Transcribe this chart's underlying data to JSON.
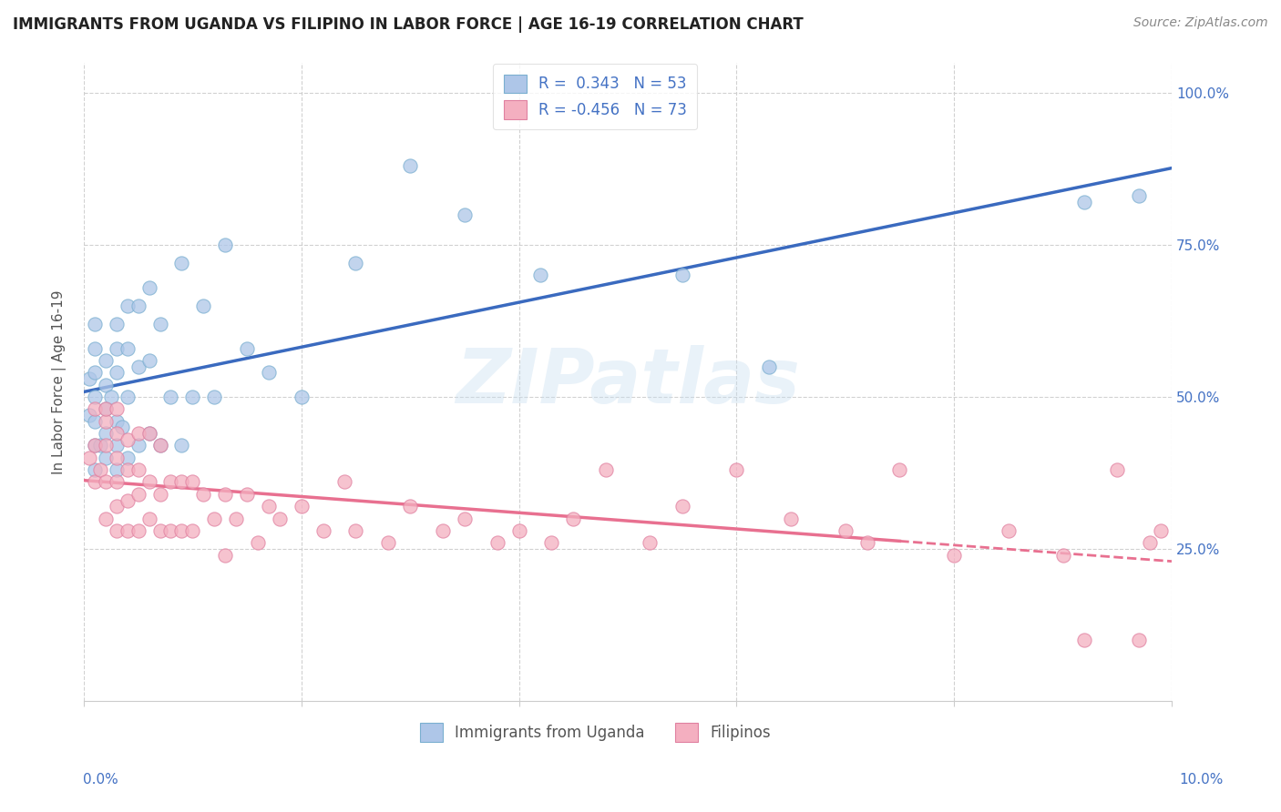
{
  "title": "IMMIGRANTS FROM UGANDA VS FILIPINO IN LABOR FORCE | AGE 16-19 CORRELATION CHART",
  "source": "Source: ZipAtlas.com",
  "ylabel": "In Labor Force | Age 16-19",
  "yticks": [
    "25.0%",
    "50.0%",
    "75.0%",
    "100.0%"
  ],
  "ytick_positions": [
    0.25,
    0.5,
    0.75,
    1.0
  ],
  "xlim": [
    0.0,
    0.1
  ],
  "ylim": [
    0.0,
    1.05
  ],
  "legend_r1": "R =  0.343",
  "legend_n1": "N = 53",
  "legend_r2": "R = -0.456",
  "legend_n2": "N = 73",
  "watermark": "ZIPatlas",
  "uganda_color": "#aec6e8",
  "filipino_color": "#f4afc0",
  "uganda_edge": "#7aafd0",
  "filipino_edge": "#e080a0",
  "line_blue": "#3a6abf",
  "line_pink": "#e87090",
  "uganda_points_x": [
    0.0005,
    0.0005,
    0.001,
    0.001,
    0.001,
    0.001,
    0.001,
    0.001,
    0.001,
    0.0015,
    0.002,
    0.002,
    0.002,
    0.002,
    0.002,
    0.0025,
    0.003,
    0.003,
    0.003,
    0.003,
    0.003,
    0.003,
    0.0035,
    0.004,
    0.004,
    0.004,
    0.004,
    0.005,
    0.005,
    0.005,
    0.006,
    0.006,
    0.006,
    0.007,
    0.007,
    0.008,
    0.009,
    0.009,
    0.01,
    0.011,
    0.012,
    0.013,
    0.015,
    0.017,
    0.02,
    0.025,
    0.03,
    0.035,
    0.042,
    0.055,
    0.063,
    0.092,
    0.097
  ],
  "uganda_points_y": [
    0.47,
    0.53,
    0.38,
    0.42,
    0.46,
    0.5,
    0.54,
    0.58,
    0.62,
    0.42,
    0.4,
    0.44,
    0.48,
    0.52,
    0.56,
    0.5,
    0.38,
    0.42,
    0.46,
    0.54,
    0.58,
    0.62,
    0.45,
    0.4,
    0.5,
    0.58,
    0.65,
    0.42,
    0.55,
    0.65,
    0.44,
    0.56,
    0.68,
    0.42,
    0.62,
    0.5,
    0.42,
    0.72,
    0.5,
    0.65,
    0.5,
    0.75,
    0.58,
    0.54,
    0.5,
    0.72,
    0.88,
    0.8,
    0.7,
    0.7,
    0.55,
    0.82,
    0.83
  ],
  "filipino_points_x": [
    0.0005,
    0.001,
    0.001,
    0.001,
    0.0015,
    0.002,
    0.002,
    0.002,
    0.002,
    0.002,
    0.003,
    0.003,
    0.003,
    0.003,
    0.003,
    0.003,
    0.004,
    0.004,
    0.004,
    0.004,
    0.005,
    0.005,
    0.005,
    0.005,
    0.006,
    0.006,
    0.006,
    0.007,
    0.007,
    0.007,
    0.008,
    0.008,
    0.009,
    0.009,
    0.01,
    0.01,
    0.011,
    0.012,
    0.013,
    0.013,
    0.014,
    0.015,
    0.016,
    0.017,
    0.018,
    0.02,
    0.022,
    0.024,
    0.025,
    0.028,
    0.03,
    0.033,
    0.035,
    0.038,
    0.04,
    0.043,
    0.045,
    0.048,
    0.052,
    0.055,
    0.06,
    0.065,
    0.07,
    0.072,
    0.075,
    0.08,
    0.085,
    0.09,
    0.092,
    0.095,
    0.097,
    0.098,
    0.099
  ],
  "filipino_points_y": [
    0.4,
    0.36,
    0.42,
    0.48,
    0.38,
    0.3,
    0.36,
    0.42,
    0.46,
    0.48,
    0.28,
    0.32,
    0.36,
    0.4,
    0.44,
    0.48,
    0.28,
    0.33,
    0.38,
    0.43,
    0.28,
    0.34,
    0.38,
    0.44,
    0.3,
    0.36,
    0.44,
    0.28,
    0.34,
    0.42,
    0.28,
    0.36,
    0.28,
    0.36,
    0.28,
    0.36,
    0.34,
    0.3,
    0.24,
    0.34,
    0.3,
    0.34,
    0.26,
    0.32,
    0.3,
    0.32,
    0.28,
    0.36,
    0.28,
    0.26,
    0.32,
    0.28,
    0.3,
    0.26,
    0.28,
    0.26,
    0.3,
    0.38,
    0.26,
    0.32,
    0.38,
    0.3,
    0.28,
    0.26,
    0.38,
    0.24,
    0.28,
    0.24,
    0.1,
    0.38,
    0.1,
    0.26,
    0.28
  ]
}
